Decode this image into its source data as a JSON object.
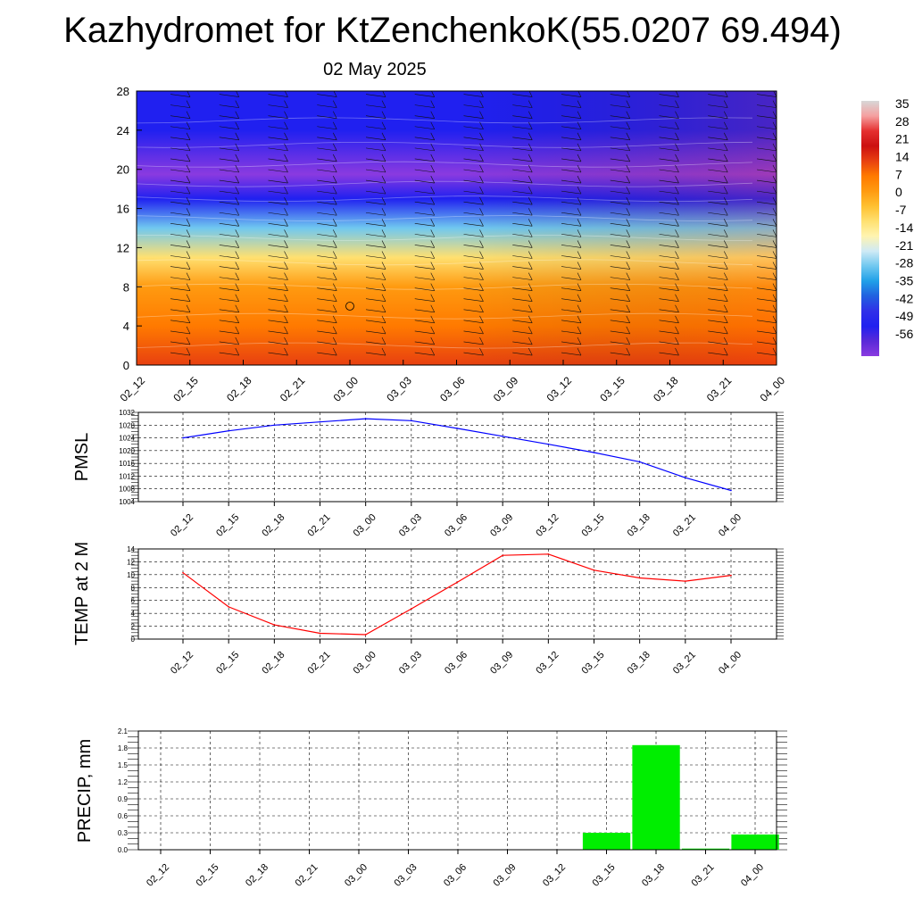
{
  "title": "Kazhydromet for KtZenchenkoK(55.0207 69.494)",
  "subtitle": "02 May 2025",
  "time_labels": [
    "02_12",
    "02_15",
    "02_18",
    "02_21",
    "03_00",
    "03_03",
    "03_06",
    "03_09",
    "03_12",
    "03_15",
    "03_18",
    "03_21",
    "04_00"
  ],
  "colorbar": {
    "labels": [
      "35",
      "28",
      "21",
      "14",
      "7",
      "0",
      "-7",
      "-14",
      "-21",
      "-28",
      "-35",
      "-42",
      "-49",
      "-56"
    ],
    "stops": [
      "#d7d7d7",
      "#f5a0a0",
      "#e53030",
      "#cc1010",
      "#e84010",
      "#ff7a00",
      "#ff9a10",
      "#ffc030",
      "#ffe070",
      "#fff4b0",
      "#cfeaf5",
      "#70c8f0",
      "#20a0e8",
      "#2060e0",
      "#3030e8",
      "#2020f0",
      "#5a2ad8",
      "#8a3ae0"
    ]
  },
  "chart_data": [
    {
      "type": "heatmap",
      "title": "",
      "xlabel": "",
      "ylabel": "",
      "x": [
        "02_12",
        "02_15",
        "02_18",
        "02_21",
        "03_00",
        "03_03",
        "03_06",
        "03_09",
        "03_12",
        "03_15",
        "03_18",
        "03_21",
        "04_00"
      ],
      "ylim": [
        0,
        28
      ],
      "yticks": [
        0,
        4,
        8,
        12,
        16,
        20,
        24,
        28
      ],
      "ytick_labels": [
        "0",
        "4",
        "8",
        "12",
        "16",
        "20",
        "24",
        "28"
      ],
      "color_scale": [
        -56,
        35
      ],
      "note_levels": [
        {
          "y": 0,
          "value": 16
        },
        {
          "y": 4,
          "value": 7
        },
        {
          "y": 8,
          "value": 2
        },
        {
          "y": 11,
          "value": -6
        },
        {
          "y": 14,
          "value": -25
        },
        {
          "y": 17,
          "value": -45
        },
        {
          "y": 19.5,
          "value": -56
        },
        {
          "y": 24,
          "value": -47
        },
        {
          "y": 28,
          "value": -46
        }
      ]
    },
    {
      "type": "line",
      "ylabel": "PMSL",
      "x": [
        "02_12",
        "02_15",
        "02_18",
        "02_21",
        "03_00",
        "03_03",
        "03_06",
        "03_09",
        "03_12",
        "03_15",
        "03_18",
        "03_21",
        "04_00"
      ],
      "ylim": [
        1004,
        1032
      ],
      "yticks": [
        1004,
        1008,
        1012,
        1016,
        1020,
        1024,
        1028,
        1032
      ],
      "ytick_labels": [
        "1004",
        "1008",
        "1012",
        "1016",
        "1020",
        "1024",
        "1028",
        "1032"
      ],
      "series": [
        {
          "color": "#0000ff",
          "values": [
            1024.0,
            1026.2,
            1028.0,
            1029.0,
            1030.0,
            1029.4,
            1027.0,
            1024.5,
            1022.0,
            1019.4,
            1016.5,
            1011.5,
            1007.5
          ]
        }
      ]
    },
    {
      "type": "line",
      "ylabel": "TEMP at 2 M",
      "x": [
        "02_12",
        "02_15",
        "02_18",
        "02_21",
        "03_00",
        "03_03",
        "03_06",
        "03_09",
        "03_12",
        "03_15",
        "03_18",
        "03_21",
        "04_00"
      ],
      "ylim": [
        0,
        14
      ],
      "yticks": [
        0,
        2,
        4,
        6,
        8,
        10,
        12,
        14
      ],
      "ytick_labels": [
        "0",
        "2",
        "4",
        "6",
        "8",
        "10",
        "12",
        "14"
      ],
      "series": [
        {
          "color": "#ff0000",
          "values": [
            10.3,
            5.0,
            2.2,
            0.9,
            0.7,
            4.7,
            8.8,
            13.0,
            13.2,
            10.7,
            9.5,
            9.0,
            9.9
          ]
        }
      ]
    },
    {
      "type": "bar",
      "ylabel": "PRECIP, mm",
      "categories": [
        "02_12",
        "02_15",
        "02_18",
        "02_21",
        "03_00",
        "03_03",
        "03_06",
        "03_09",
        "03_12",
        "03_15",
        "03_18",
        "03_21",
        "04_00"
      ],
      "ylim": [
        0,
        2.1
      ],
      "yticks": [
        0,
        0.3,
        0.6,
        0.9,
        1.2,
        1.5,
        1.8,
        2.1
      ],
      "ytick_labels": [
        "0.0",
        "0.3",
        "0.6",
        "0.9",
        "1.2",
        "1.5",
        "1.8",
        "2.1"
      ],
      "bar_color": "#00ee00",
      "values": [
        0,
        0,
        0,
        0,
        0,
        0,
        0,
        0,
        0,
        0.3,
        1.85,
        0.02,
        0.27
      ]
    }
  ]
}
